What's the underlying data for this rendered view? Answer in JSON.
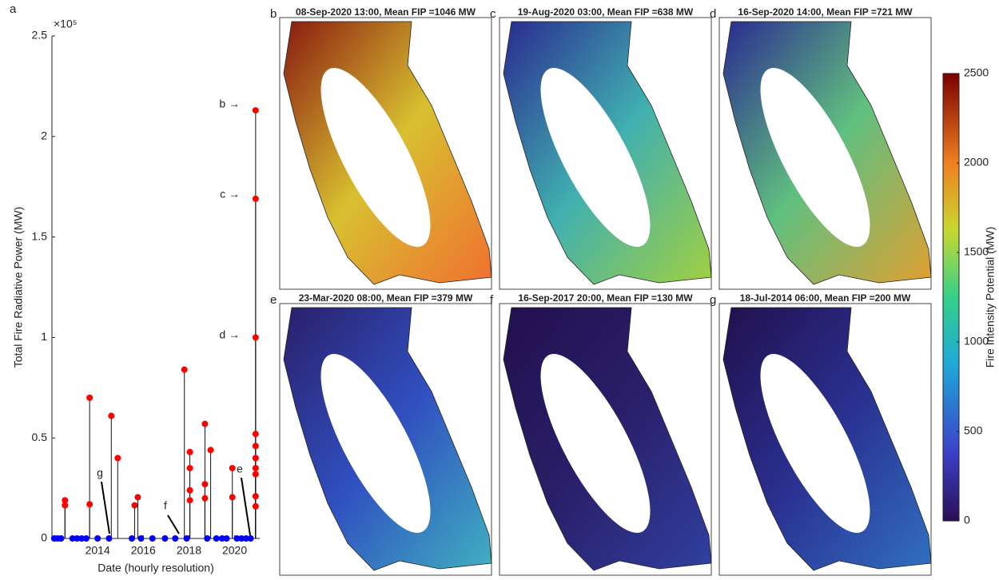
{
  "chart_data": [
    {
      "type": "stem",
      "panel_label": "a",
      "ylabel": "Total Fire Radiative Power (MW)",
      "xlabel": "Date (hourly resolution)",
      "y_multiplier": "×10⁵",
      "xlim": [
        2012,
        2021.1
      ],
      "xticks": [
        2014,
        2016,
        2018,
        2020
      ],
      "ylim": [
        0,
        250000
      ],
      "yticks": [
        0,
        {
          "value": 50000,
          "label": "0.5"
        },
        {
          "value": 100000,
          "label": "1"
        },
        {
          "value": 150000,
          "label": "1.5"
        },
        {
          "value": 200000,
          "label": "2"
        },
        {
          "value": 250000,
          "label": "2.5"
        }
      ],
      "series": [
        {
          "color": "#ff0000",
          "x": [
            2012.57,
            2012.57,
            2013.65,
            2013.65,
            2014.6,
            2014.88,
            2015.62,
            2015.76,
            2017.8,
            2018.04,
            2018.04,
            2018.04,
            2018.04,
            2018.7,
            2018.7,
            2018.7,
            2018.95,
            2019.9,
            2019.9,
            2020.92,
            2020.92,
            2020.92,
            2020.92,
            2020.92,
            2020.92,
            2020.92,
            2020.92,
            2020.92,
            2020.92
          ],
          "values": [
            19000,
            16500,
            70000,
            17000,
            61000,
            40000,
            16500,
            20500,
            84000,
            43000,
            35000,
            24000,
            19000,
            57000,
            27000,
            20000,
            44000,
            35000,
            20500,
            213000,
            169000,
            100000,
            52000,
            46000,
            40000,
            35000,
            32000,
            21000,
            16000
          ]
        },
        {
          "color": "#0000ff",
          "x": [
            2012.1,
            2012.25,
            2012.4,
            2012.9,
            2013.1,
            2013.3,
            2013.5,
            2014.0,
            2014.5,
            2015.5,
            2015.9,
            2016.4,
            2016.95,
            2017.4,
            2017.9,
            2018.8,
            2019.2,
            2019.45,
            2019.65,
            2020.1,
            2020.3,
            2020.5,
            2020.7
          ],
          "values": [
            0,
            0,
            0,
            0,
            0,
            0,
            0,
            0,
            0,
            0,
            0,
            0,
            0,
            0,
            0,
            0,
            0,
            0,
            0,
            0,
            0,
            0,
            0
          ]
        }
      ],
      "annotations": [
        "b →",
        "c →",
        "d →",
        "g",
        "f",
        "e"
      ]
    },
    {
      "type": "colorbar",
      "label": "Fire Intensity Potential (MW)",
      "ylim": [
        0,
        2500
      ],
      "yticks": [
        0,
        500,
        1000,
        1500,
        2000,
        2500
      ]
    }
  ],
  "maps": [
    {
      "letter": "b",
      "title": "08-Sep-2020 13:00, Mean FIP =1046 MW"
    },
    {
      "letter": "c",
      "title": "19-Aug-2020 03:00, Mean FIP =638 MW"
    },
    {
      "letter": "d",
      "title": "16-Sep-2020 14:00, Mean FIP =721 MW"
    },
    {
      "letter": "e",
      "title": "23-Mar-2020 08:00, Mean FIP =379 MW"
    },
    {
      "letter": "f",
      "title": "16-Sep-2017 20:00, Mean FIP =130 MW"
    },
    {
      "letter": "g",
      "title": "18-Jul-2014 06:00, Mean FIP =200 MW"
    }
  ]
}
